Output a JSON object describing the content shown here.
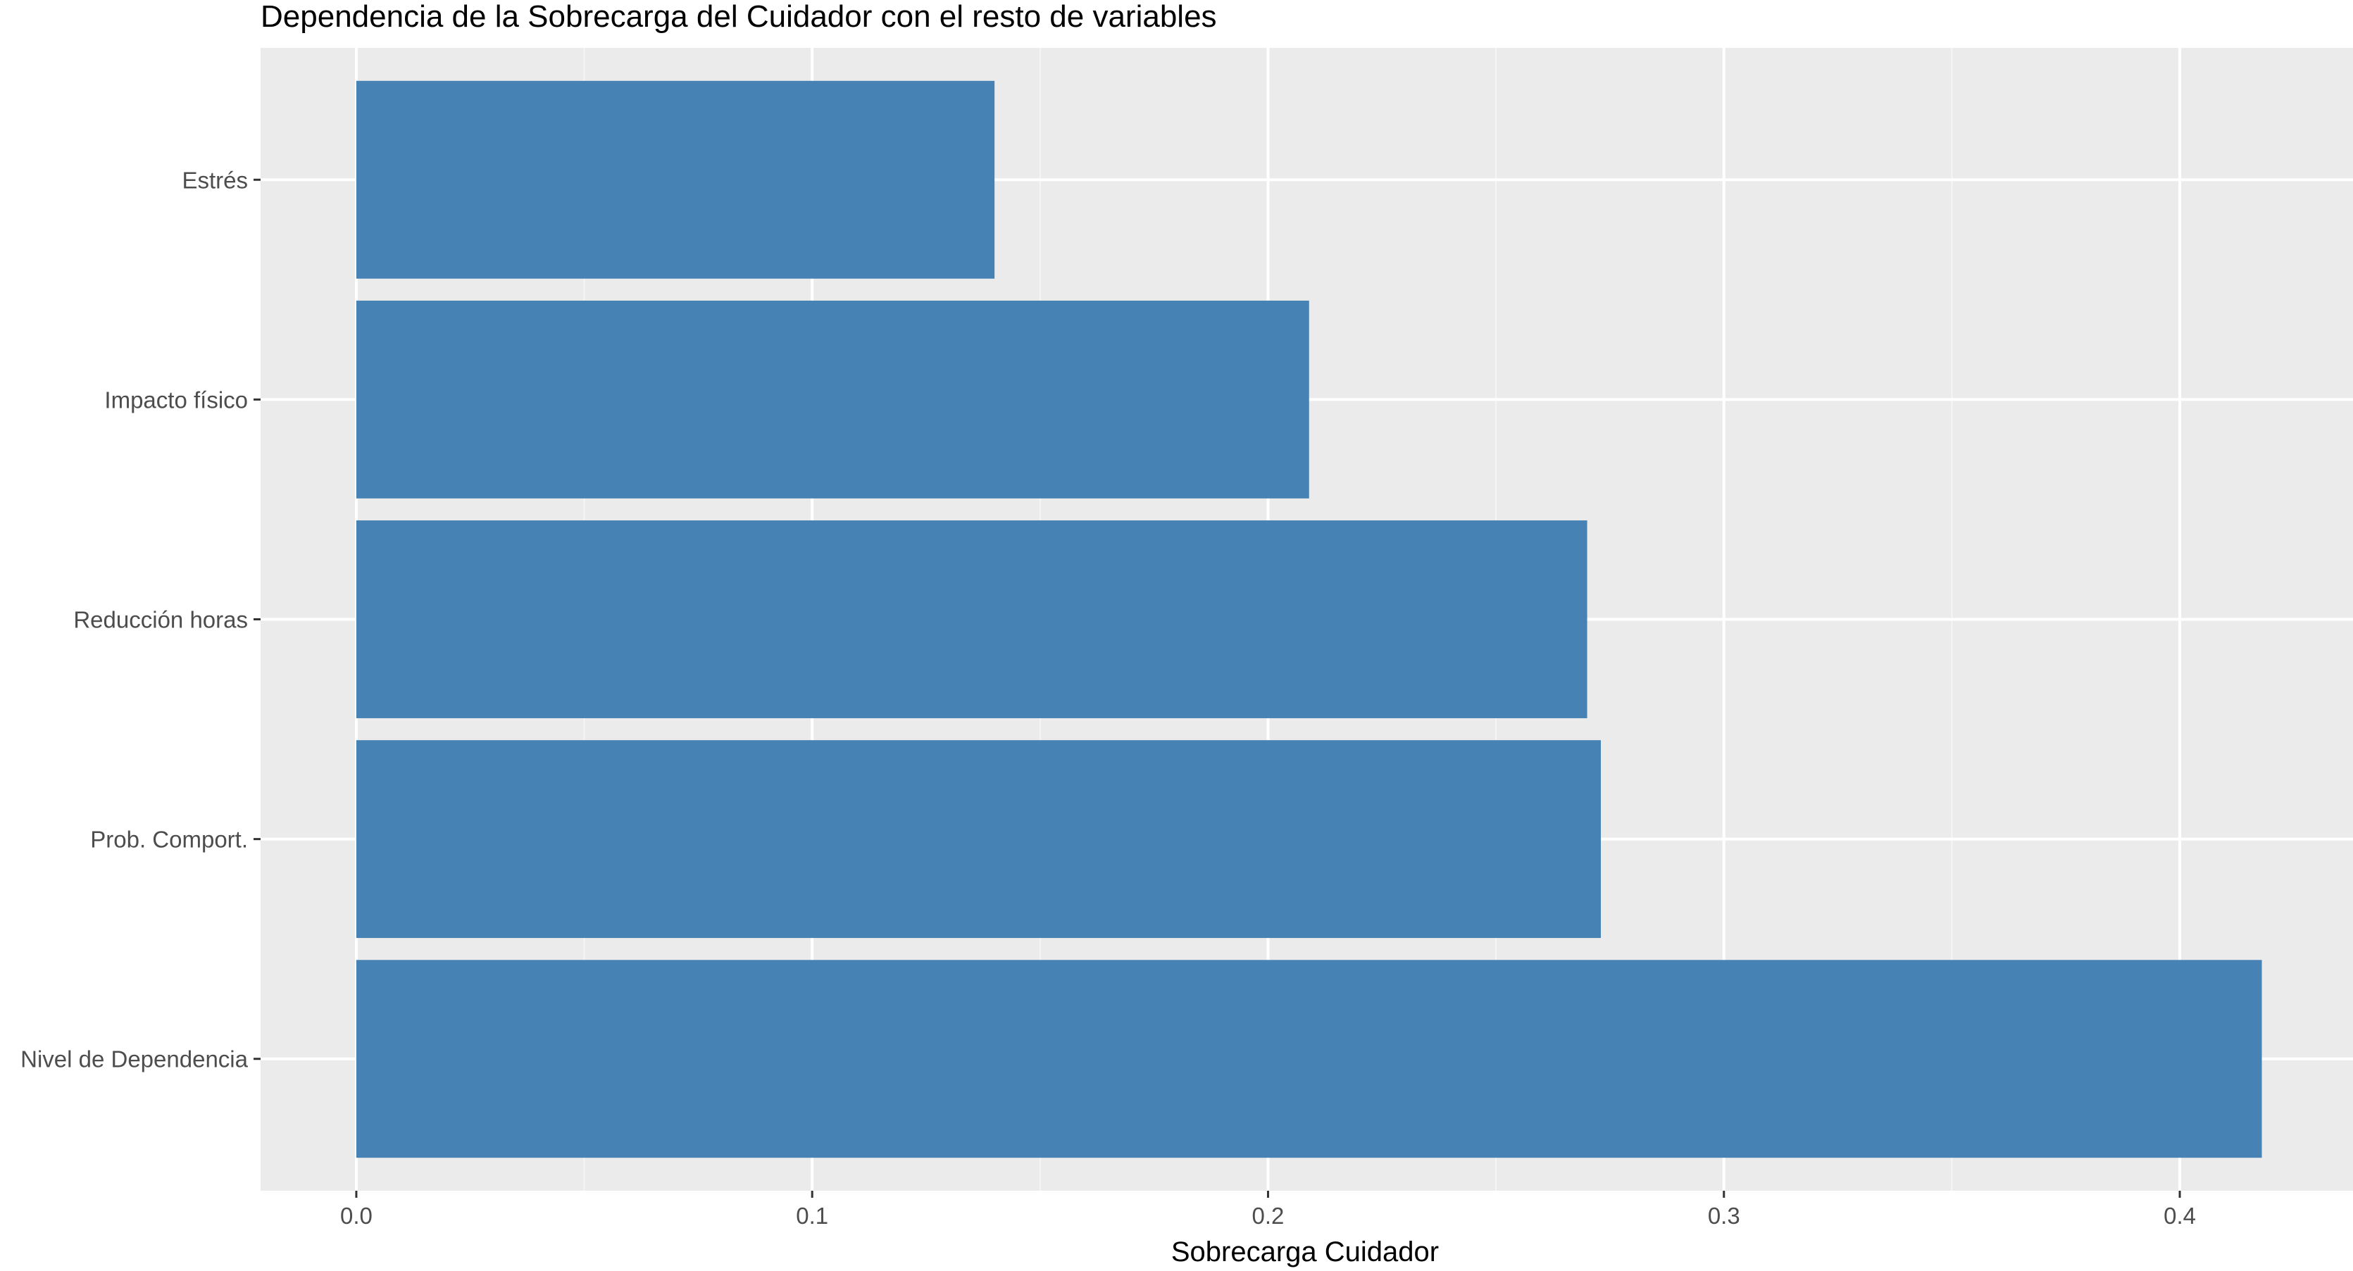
{
  "chart_data": {
    "type": "bar",
    "orientation": "horizontal",
    "title": "Dependencia de la Sobrecarga del Cuidador con el resto de variables",
    "xlabel": "Sobrecarga Cuidador",
    "ylabel": "",
    "categories": [
      "Estrés",
      "Impacto físico",
      "Reducción horas",
      "Prob. Comport.",
      "Nivel de Dependencia"
    ],
    "values": [
      0.14,
      0.209,
      0.27,
      0.273,
      0.418
    ],
    "xlim": [
      -0.021,
      0.438
    ],
    "xticks": [
      0.0,
      0.1,
      0.2,
      0.3,
      0.4
    ],
    "xtick_labels": [
      "0.0",
      "0.1",
      "0.2",
      "0.3",
      "0.4"
    ],
    "grid": true,
    "legend": "none",
    "colors": {
      "bar": "#4682b4",
      "panel_background": "#ebebeb",
      "grid_major": "#ffffff",
      "grid_minor": "#f5f5f5",
      "tick_text": "#4d4d4d"
    }
  }
}
